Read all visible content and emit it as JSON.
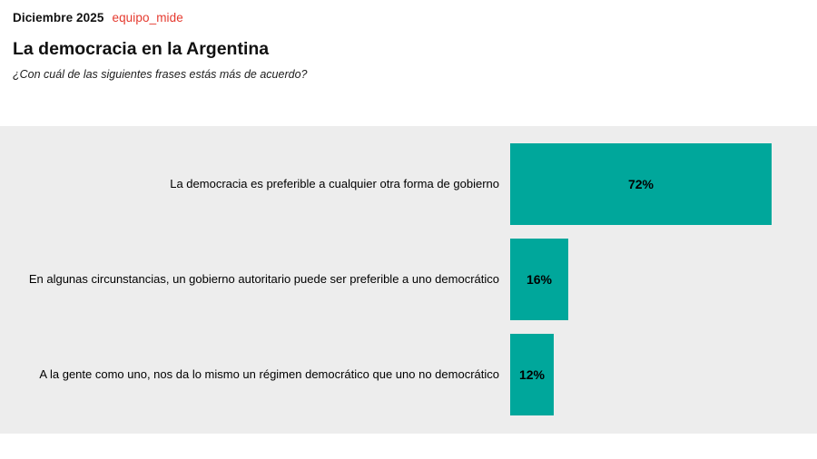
{
  "header": {
    "date": "Diciembre 2025",
    "brand": "equipo_mide",
    "title": "La democracia en la Argentina",
    "subtitle": "¿Con cuál de las siguientes frases estás más de acuerdo?"
  },
  "colors": {
    "brand_red": "#e5392e",
    "bar_teal": "#00a79b",
    "plot_background": "#ededed",
    "text_black": "#111111"
  },
  "chart_data": {
    "type": "bar",
    "orientation": "horizontal",
    "title": "La democracia en la Argentina",
    "subtitle": "¿Con cuál de las siguientes frases estás más de acuerdo?",
    "categories": [
      "La democracia es preferible a cualquier otra forma de gobierno",
      "En algunas circunstancias, un gobierno autoritario puede ser preferible a uno democrático",
      "A la gente como uno, nos da lo mismo un régimen democrático que uno no democrático"
    ],
    "values": [
      72,
      16,
      12
    ],
    "value_labels": [
      "72%",
      "16%",
      "12%"
    ],
    "unit": "%",
    "xlim": [
      0,
      100
    ],
    "grid": false,
    "legend": false,
    "value_label_position": "inside-center",
    "bar_color": "#00a79b",
    "plot_background": "#ededed"
  }
}
